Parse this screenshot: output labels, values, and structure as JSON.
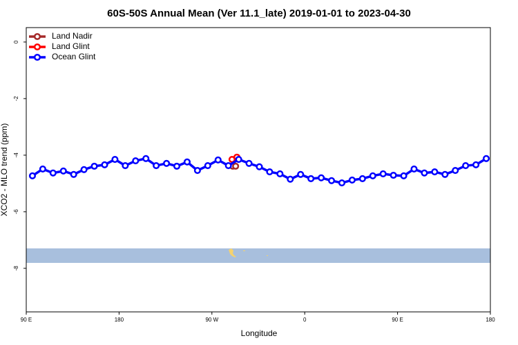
{
  "chart_data": {
    "type": "line",
    "title": "60S-50S Annual Mean (Ver 11.1_late)   2019-01-01 to 2023-04-30",
    "x_label": "Longitude",
    "y_label": "XCO2 - MLO trend (ppm)",
    "xlim": [
      0,
      360
    ],
    "xticks": [
      {
        "value": 0,
        "label": "90 E"
      },
      {
        "value": 72,
        "label": "180"
      },
      {
        "value": 144,
        "label": "90 W"
      },
      {
        "value": 216,
        "label": "0"
      },
      {
        "value": 288,
        "label": "90 E"
      },
      {
        "value": 360,
        "label": "180"
      }
    ],
    "ylim": [
      -9.54,
      0.51
    ],
    "yticks": [
      0,
      -2,
      -4,
      -6,
      -8
    ],
    "legend": "top-left",
    "series": [
      {
        "name": "Land Nadir",
        "color": "#a52a2a",
        "x": [
          160.2,
          162.4
        ],
        "values": [
          -4.39,
          -4.39
        ]
      },
      {
        "name": "Land Glint",
        "color": "#ff0000",
        "x": [
          159.6,
          163.4
        ],
        "values": [
          -4.15,
          -4.07
        ]
      },
      {
        "name": "Ocean Glint",
        "color": "#0000ff",
        "x": [
          4.8,
          12.8,
          20.8,
          28.8,
          36.8,
          44.8,
          52.8,
          60.8,
          68.8,
          76.8,
          84.8,
          92.8,
          100.8,
          108.8,
          116.8,
          124.8,
          132.8,
          140.8,
          148.8,
          156.8,
          164.8,
          172.8,
          180.8,
          188.8,
          196.8,
          204.8,
          212.8,
          220.8,
          228.8,
          236.8,
          244.8,
          252.8,
          260.8,
          268.8,
          276.8,
          284.8,
          292.8,
          300.8,
          308.8,
          316.8,
          324.8,
          332.8,
          340.8,
          348.8,
          356.8
        ],
        "values": [
          -4.73,
          -4.49,
          -4.63,
          -4.56,
          -4.68,
          -4.51,
          -4.39,
          -4.34,
          -4.15,
          -4.37,
          -4.2,
          -4.12,
          -4.37,
          -4.29,
          -4.39,
          -4.24,
          -4.54,
          -4.37,
          -4.17,
          -4.37,
          -4.15,
          -4.29,
          -4.41,
          -4.59,
          -4.66,
          -4.85,
          -4.68,
          -4.83,
          -4.8,
          -4.9,
          -4.98,
          -4.88,
          -4.83,
          -4.73,
          -4.66,
          -4.71,
          -4.73,
          -4.49,
          -4.63,
          -4.59,
          -4.68,
          -4.54,
          -4.37,
          -4.34,
          -4.12
        ]
      }
    ]
  }
}
